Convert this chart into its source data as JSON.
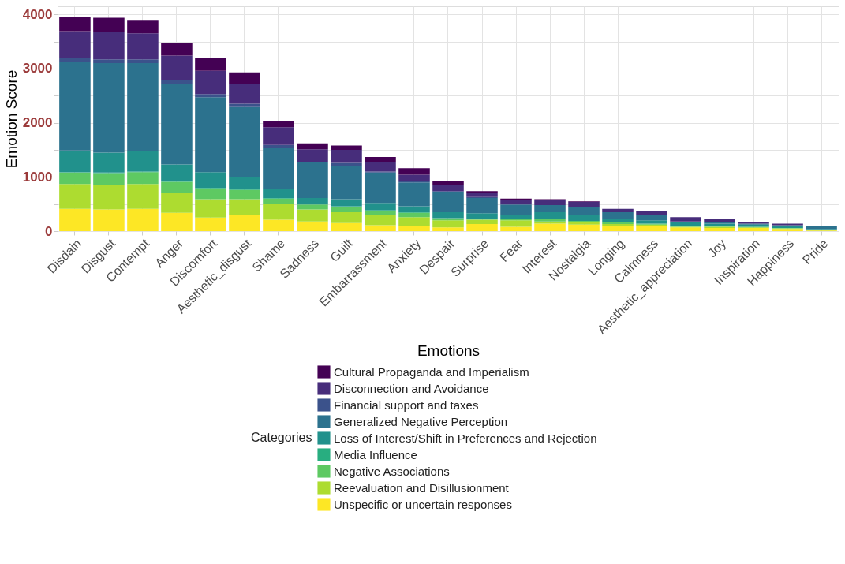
{
  "chart_data": {
    "type": "bar",
    "stacked": true,
    "xlabel": "Emotions",
    "ylabel": "Emotion Score",
    "legend_title": "Categories",
    "legend": "bottom",
    "grid": true,
    "categories": [
      "Disdain",
      "Disgust",
      "Contempt",
      "Anger",
      "Discomfort",
      "Aesthetic_disgust",
      "Shame",
      "Sadness",
      "Guilt",
      "Embarrassment",
      "Anxiety",
      "Despair",
      "Surprise",
      "Fear",
      "Interest",
      "Nostalgia",
      "Longing",
      "Calmness",
      "Aesthetic_appreciation",
      "Joy",
      "Inspiration",
      "Happiness",
      "Pride"
    ],
    "ylim": [
      0,
      4150
    ],
    "yticks": [
      0,
      {
        "value": 500,
        "label": null
      },
      1000,
      {
        "value": 1500,
        "label": null
      },
      2000,
      {
        "value": 2500,
        "label": null
      },
      3000,
      {
        "value": 3500,
        "label": null
      },
      4000
    ],
    "series": [
      {
        "name": "Unspecific or uncertain responses",
        "color": "#fde725",
        "values": [
          410,
          400,
          410,
          340,
          250,
          300,
          210,
          180,
          150,
          110,
          100,
          70,
          130,
          80,
          140,
          120,
          90,
          100,
          70,
          60,
          60,
          40,
          10
        ]
      },
      {
        "name": "Reevaluation and Disillusionment",
        "color": "#addc30",
        "values": [
          460,
          460,
          460,
          360,
          340,
          290,
          290,
          220,
          200,
          190,
          160,
          130,
          80,
          120,
          40,
          40,
          40,
          20,
          10,
          20,
          10,
          10,
          10
        ]
      },
      {
        "name": "Negative Associations",
        "color": "#5ec962",
        "values": [
          210,
          210,
          220,
          210,
          200,
          170,
          100,
          90,
          100,
          80,
          80,
          40,
          20,
          20,
          50,
          30,
          30,
          20,
          10,
          10,
          10,
          10,
          10
        ]
      },
      {
        "name": "Media Influence",
        "color": "#28ae80",
        "values": [
          10,
          10,
          10,
          10,
          10,
          10,
          10,
          null,
          10,
          10,
          10,
          0,
          0,
          0,
          0,
          0,
          0,
          0,
          0,
          0,
          0,
          0,
          0
        ]
      },
      {
        "name": "Loss of Interest/Shift in Preferences and Rejection",
        "color": "#21918c",
        "values": [
          400,
          370,
          380,
          310,
          290,
          230,
          160,
          120,
          130,
          130,
          110,
          110,
          100,
          70,
          120,
          110,
          60,
          60,
          70,
          50,
          40,
          30,
          10
        ]
      },
      {
        "name": "Generalized Negative Perception",
        "color": "#2c728e",
        "values": [
          1640,
          1650,
          1620,
          1490,
          1380,
          1290,
          760,
          660,
          620,
          560,
          440,
          370,
          280,
          200,
          130,
          140,
          130,
          100,
          20,
          30,
          20,
          20,
          50
        ]
      },
      {
        "name": "Financial support and taxes",
        "color": "#3b528b",
        "values": [
          70,
          70,
          70,
          60,
          60,
          60,
          60,
          10,
          50,
          20,
          20,
          20,
          20,
          0,
          0,
          0,
          0,
          0,
          0,
          0,
          0,
          0,
          0
        ]
      },
      {
        "name": "Disconnection and Avoidance",
        "color": "#472d7b",
        "values": [
          490,
          510,
          480,
          460,
          430,
          360,
          330,
          230,
          240,
          180,
          120,
          110,
          70,
          90,
          100,
          100,
          60,
          80,
          80,
          50,
          20,
          30,
          10
        ]
      },
      {
        "name": "Cultural Propaganda and Imperialism",
        "color": "#440154",
        "values": [
          270,
          260,
          250,
          230,
          240,
          220,
          120,
          110,
          80,
          90,
          120,
          80,
          40,
          20,
          10,
          10,
          0,
          0,
          0,
          0,
          0,
          0,
          0
        ]
      }
    ]
  }
}
